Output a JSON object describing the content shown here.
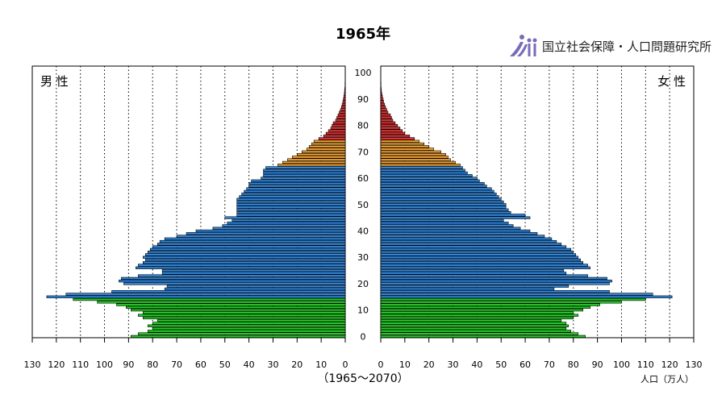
{
  "title": "1965年",
  "logo": {
    "text": "国立社会保障・人口問題研究所"
  },
  "chart_data": {
    "type": "bar",
    "title": "1965年",
    "left_label": "男 性",
    "right_label": "女 性",
    "xlabel": "（1965～2070）",
    "unit_label": "人口（万人）",
    "xlim": [
      0,
      130
    ],
    "x_ticks": [
      0,
      10,
      20,
      30,
      40,
      50,
      60,
      70,
      80,
      90,
      100,
      110,
      120,
      130
    ],
    "age_ticks": [
      0,
      10,
      20,
      30,
      40,
      50,
      60,
      70,
      80,
      90,
      100
    ],
    "colors": {
      "young": "#22cc22",
      "working": "#2e86de",
      "old": "#f0a030",
      "oldest": "#e03030",
      "edge": "#000000"
    },
    "age_groups": [
      {
        "from": 0,
        "to": 14,
        "color": "young"
      },
      {
        "from": 15,
        "to": 64,
        "color": "working"
      },
      {
        "from": 65,
        "to": 74,
        "color": "old"
      },
      {
        "from": 75,
        "to": 100,
        "color": "oldest"
      }
    ],
    "male": [
      89,
      86,
      82,
      80,
      82,
      80,
      78,
      84,
      86,
      84,
      89,
      91,
      95,
      103,
      113,
      124,
      116,
      97,
      75,
      74,
      92,
      94,
      93,
      86,
      76,
      76,
      87,
      86,
      84,
      83,
      84,
      83,
      82,
      81,
      80,
      78,
      77,
      75,
      70,
      66,
      62,
      55,
      51,
      49,
      47,
      50,
      45,
      45,
      45,
      45,
      45,
      45,
      45,
      44,
      43,
      42,
      41,
      40,
      40,
      39,
      35,
      34,
      34,
      34,
      33,
      28,
      26,
      24,
      22,
      20,
      18,
      16,
      15,
      14,
      13,
      11,
      9,
      8,
      7,
      6,
      5.5,
      5,
      4,
      3.5,
      3,
      2.5,
      2,
      1.6,
      1.3,
      1,
      0.8,
      0.6,
      0.4,
      0.3,
      0.2,
      0.1,
      0.1,
      0,
      0,
      0,
      0
    ],
    "female": [
      85,
      82,
      79,
      77,
      78,
      77,
      75,
      80,
      82,
      80,
      84,
      87,
      91,
      100,
      110,
      121,
      113,
      95,
      72,
      78,
      95,
      96,
      94,
      86,
      77,
      76,
      87,
      86,
      84,
      83,
      82,
      81,
      80,
      79,
      77,
      75,
      73,
      71,
      68,
      65,
      62,
      58,
      55,
      53,
      51,
      62,
      60,
      54,
      53,
      52,
      52,
      51,
      50,
      49,
      48,
      47,
      46,
      44,
      43,
      41,
      40,
      38,
      36,
      35,
      34,
      33,
      31,
      29,
      28,
      27,
      25,
      22,
      20,
      18,
      16,
      14,
      12,
      10,
      9,
      8,
      7,
      6,
      5,
      4.5,
      4,
      3,
      2.5,
      2,
      1.6,
      1.2,
      1,
      0.7,
      0.5,
      0.3,
      0.2,
      0.1,
      0.1,
      0,
      0,
      0,
      0
    ]
  }
}
